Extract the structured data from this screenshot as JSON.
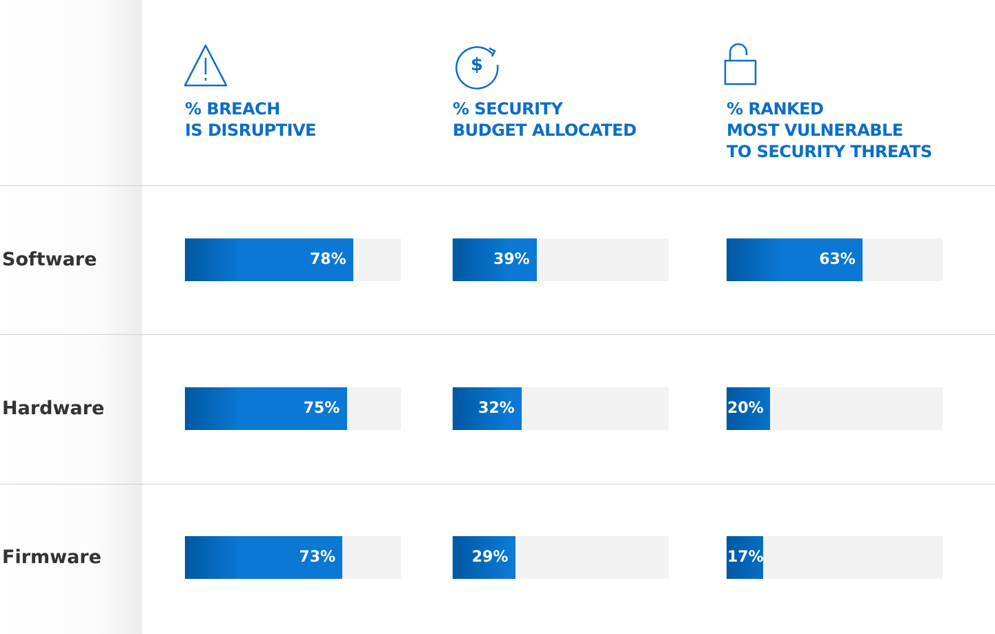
{
  "chart_data": {
    "type": "bar",
    "categories": [
      "Software",
      "Hardware",
      "Firmware"
    ],
    "xlim": [
      0,
      100
    ],
    "color": "#0a78d4",
    "series": [
      {
        "name": "% BREACH\nIS DISRUPTIVE",
        "values": [
          78,
          75,
          73
        ],
        "value_labels": [
          "78%",
          "75%",
          "73%"
        ]
      },
      {
        "name": "% SECURITY\nBUDGET ALLOCATED",
        "values": [
          39,
          32,
          29
        ],
        "value_labels": [
          "39%",
          "32%",
          "29%"
        ]
      },
      {
        "name": "% RANKED\nMOST VULNERABLE\nTO SECURITY THREATS",
        "values": [
          63,
          20,
          17
        ],
        "value_labels": [
          "63%",
          "20%",
          "17%"
        ]
      }
    ]
  }
}
